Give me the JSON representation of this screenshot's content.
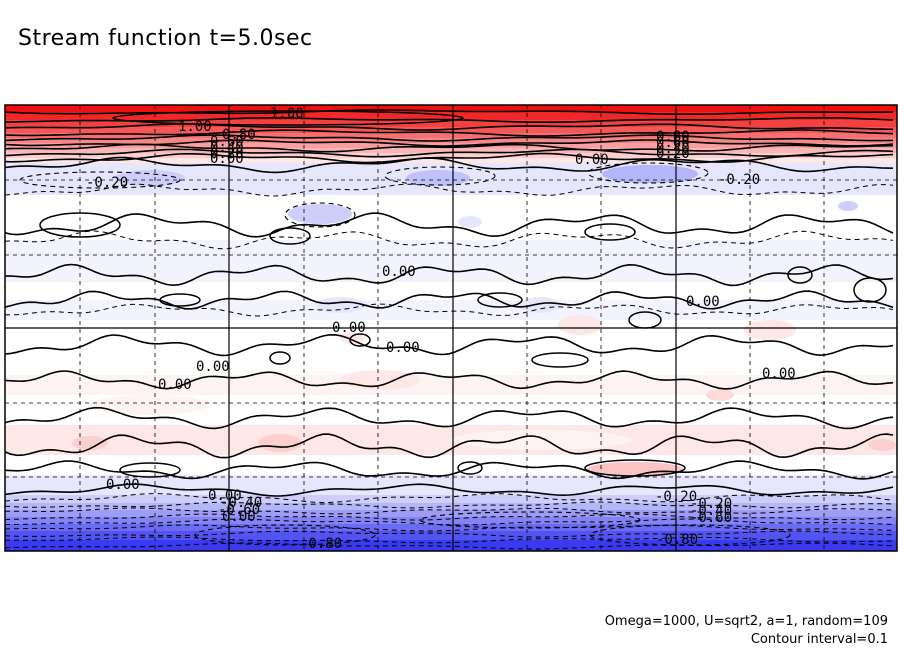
{
  "title": "Stream function t=5.0sec",
  "footer": {
    "params": "Omega=1000, U=sqrt2, a=1, random=109",
    "contour_interval": "Contour interval=0.1"
  },
  "colors": {
    "positive_max": "#f01010",
    "negative_max": "#3a3af0",
    "frame": "#000000"
  },
  "chart_data": {
    "type": "heatmap",
    "title": "Stream function t=5.0sec",
    "xlabel": "",
    "ylabel": "",
    "grid": true,
    "contour_interval": 0.1,
    "value_range": [
      -0.8,
      1.0
    ],
    "contour_labels": [
      {
        "text": "1.00",
        "value": 1.0
      },
      {
        "text": "1.00",
        "value": 1.0
      },
      {
        "text": "0.80",
        "value": 0.8
      },
      {
        "text": "0.60",
        "value": 0.6
      },
      {
        "text": "0.40",
        "value": 0.4
      },
      {
        "text": "0.20",
        "value": 0.2
      },
      {
        "text": "0.00",
        "value": 0.0
      },
      {
        "text": "0.80",
        "value": 0.8
      },
      {
        "text": "0.60",
        "value": 0.6
      },
      {
        "text": "0.40",
        "value": 0.4
      },
      {
        "text": "0.20",
        "value": 0.2
      },
      {
        "text": "0.00",
        "value": 0.0
      },
      {
        "text": "-0.20",
        "value": -0.2
      },
      {
        "text": "-0.20",
        "value": -0.2
      },
      {
        "text": "0.00",
        "value": 0.0
      },
      {
        "text": "0.00",
        "value": 0.0
      },
      {
        "text": "0.00",
        "value": 0.0
      },
      {
        "text": "0.00",
        "value": 0.0
      },
      {
        "text": "0.00",
        "value": 0.0
      },
      {
        "text": "0.00",
        "value": 0.0
      },
      {
        "text": "0.00",
        "value": 0.0
      },
      {
        "text": "0.00",
        "value": 0.0
      },
      {
        "text": "0.00",
        "value": 0.0
      },
      {
        "text": "-0.20",
        "value": -0.2
      },
      {
        "text": "-0.40",
        "value": -0.4
      },
      {
        "text": "-0.60",
        "value": -0.6
      },
      {
        "text": "0.00",
        "value": 0.0
      },
      {
        "text": "-0.20",
        "value": -0.2
      },
      {
        "text": "-0.40",
        "value": -0.4
      },
      {
        "text": "-0.60",
        "value": -0.6
      },
      {
        "text": "-0.80",
        "value": -0.8
      },
      {
        "text": "-0.80",
        "value": -0.8
      }
    ],
    "bands": [
      {
        "value": 1.0
      },
      {
        "value": 0.9
      },
      {
        "value": 0.8
      },
      {
        "value": 0.7
      },
      {
        "value": 0.6
      },
      {
        "value": 0.5
      },
      {
        "value": 0.4
      },
      {
        "value": 0.3
      },
      {
        "value": 0.2
      },
      {
        "value": 0.1
      },
      {
        "value": -0.1
      },
      {
        "value": 0.0
      },
      {
        "value": -0.05
      },
      {
        "value": 0.0
      },
      {
        "value": -0.05
      },
      {
        "value": 0.0
      },
      {
        "value": 0.0
      },
      {
        "value": 0.05
      },
      {
        "value": 0.0
      },
      {
        "value": 0.1
      },
      {
        "value": 0.0
      },
      {
        "value": -0.1
      },
      {
        "value": -0.2
      },
      {
        "value": -0.3
      },
      {
        "value": -0.4
      },
      {
        "value": -0.5
      },
      {
        "value": -0.6
      },
      {
        "value": -0.7
      },
      {
        "value": -0.8
      }
    ]
  }
}
